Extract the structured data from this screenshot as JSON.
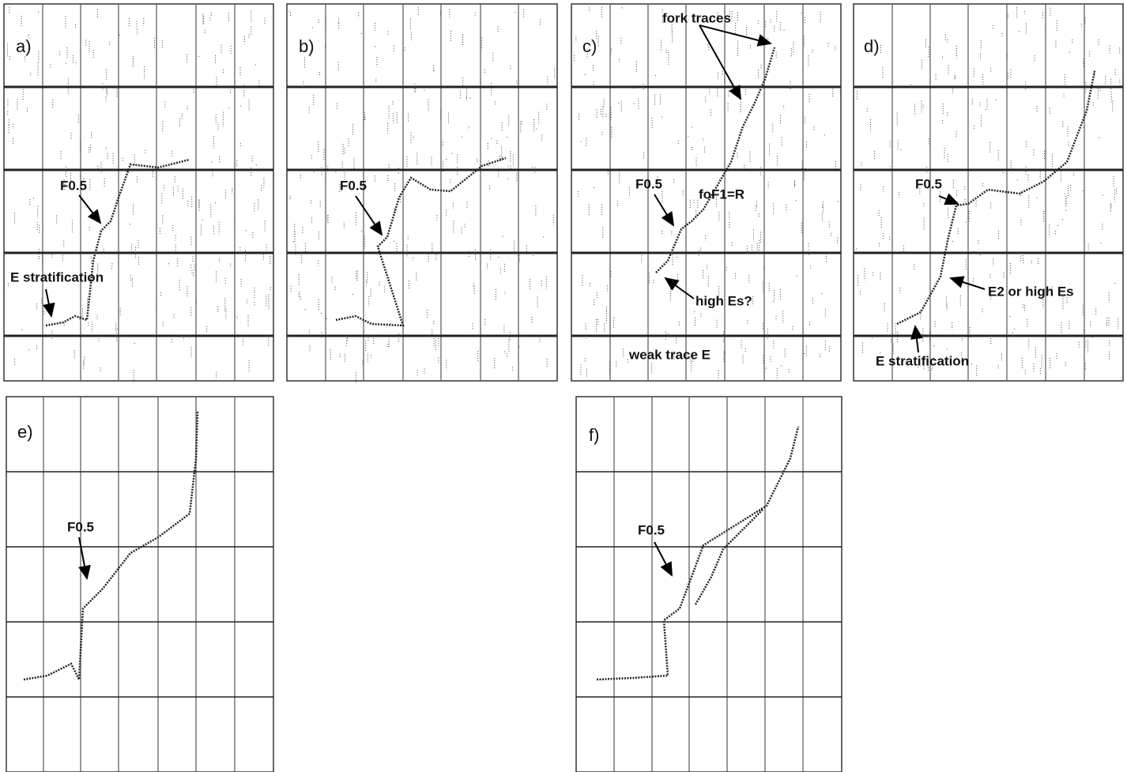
{
  "panels": [
    {
      "label": "a)",
      "annotations": [
        "F0.5",
        "E stratification"
      ]
    },
    {
      "label": "b)",
      "annotations": [
        "F0.5"
      ]
    },
    {
      "label": "c)",
      "annotations": [
        "fork traces",
        "F0.5",
        "foF1=R",
        "high Es?",
        "weak trace E"
      ]
    },
    {
      "label": "d)",
      "annotations": [
        "F0.5",
        "E2 or high Es",
        "E stratification"
      ]
    },
    {
      "label": "e)",
      "annotations": [
        "F0.5"
      ]
    },
    {
      "label": "f)",
      "annotations": [
        "F0.5"
      ]
    }
  ]
}
